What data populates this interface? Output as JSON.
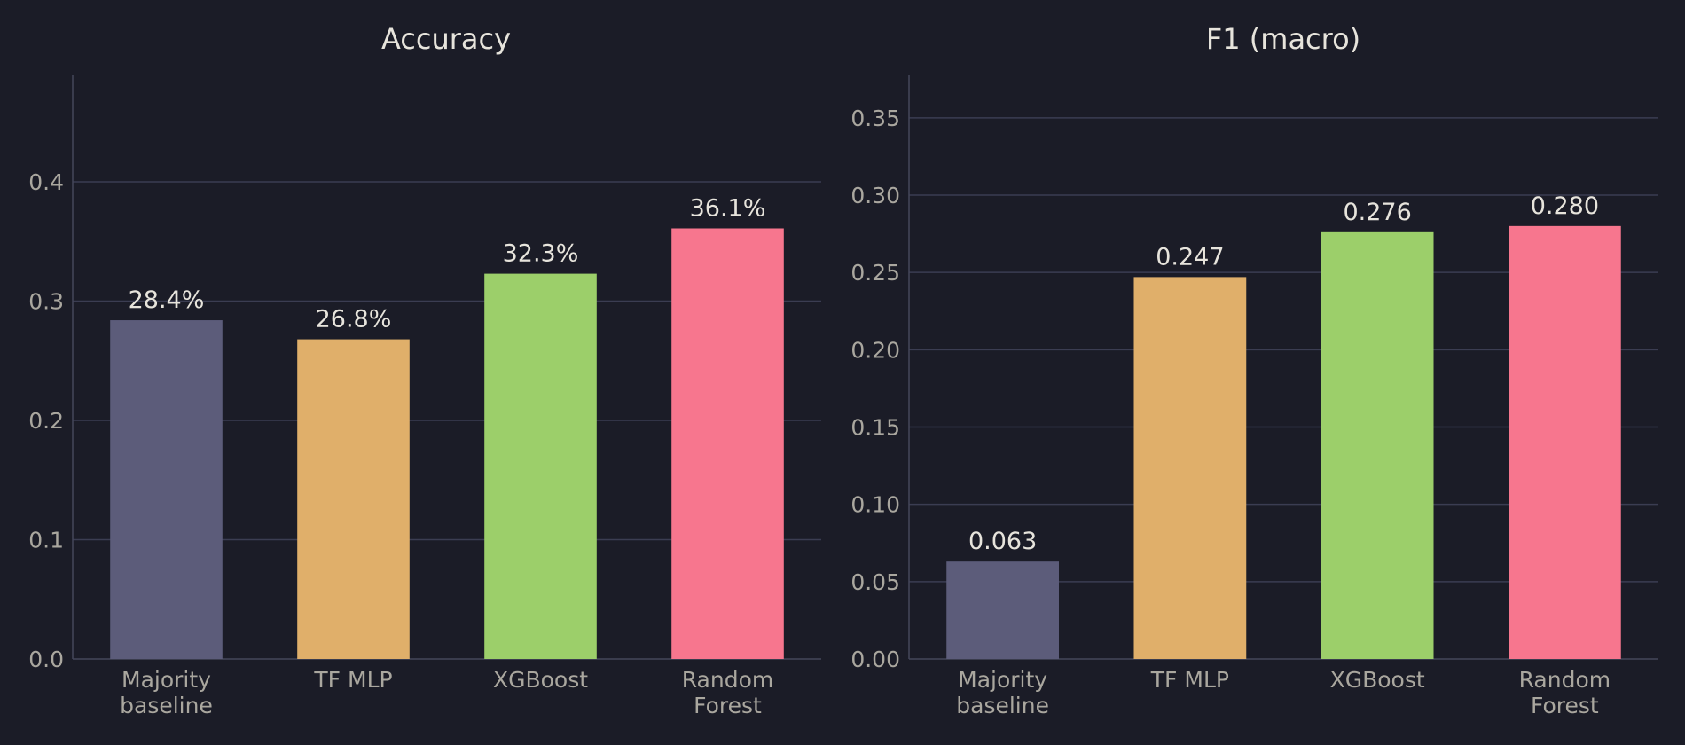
{
  "chart_data": [
    {
      "type": "bar",
      "title": "Accuracy",
      "categories": [
        "Majority\nbaseline",
        "TF MLP",
        "XGBoost",
        "Random\nForest"
      ],
      "values": [
        0.284,
        0.268,
        0.323,
        0.361
      ],
      "data_labels": [
        "28.4%",
        "26.8%",
        "32.3%",
        "36.1%"
      ],
      "colors": [
        "#5c5c7a",
        "#e0af6a",
        "#9ccf6a",
        "#f7768e"
      ],
      "yticks": [
        "0.0",
        "0.1",
        "0.2",
        "0.3",
        "0.4"
      ],
      "ytick_values": [
        0,
        0.1,
        0.2,
        0.3,
        0.4
      ],
      "ylim": [
        0,
        0.49
      ],
      "xlabel": "",
      "ylabel": "",
      "grid": "horizontal"
    },
    {
      "type": "bar",
      "title": "F1 (macro)",
      "categories": [
        "Majority\nbaseline",
        "TF MLP",
        "XGBoost",
        "Random\nForest"
      ],
      "values": [
        0.063,
        0.247,
        0.276,
        0.28
      ],
      "data_labels": [
        "0.063",
        "0.247",
        "0.276",
        "0.280"
      ],
      "colors": [
        "#5c5c7a",
        "#e0af6a",
        "#9ccf6a",
        "#f7768e"
      ],
      "yticks": [
        "0.00",
        "0.05",
        "0.10",
        "0.15",
        "0.20",
        "0.25",
        "0.30",
        "0.35"
      ],
      "ytick_values": [
        0,
        0.05,
        0.1,
        0.15,
        0.2,
        0.25,
        0.3,
        0.35
      ],
      "ylim": [
        0,
        0.378
      ],
      "xlabel": "",
      "ylabel": "",
      "grid": "horizontal"
    }
  ]
}
